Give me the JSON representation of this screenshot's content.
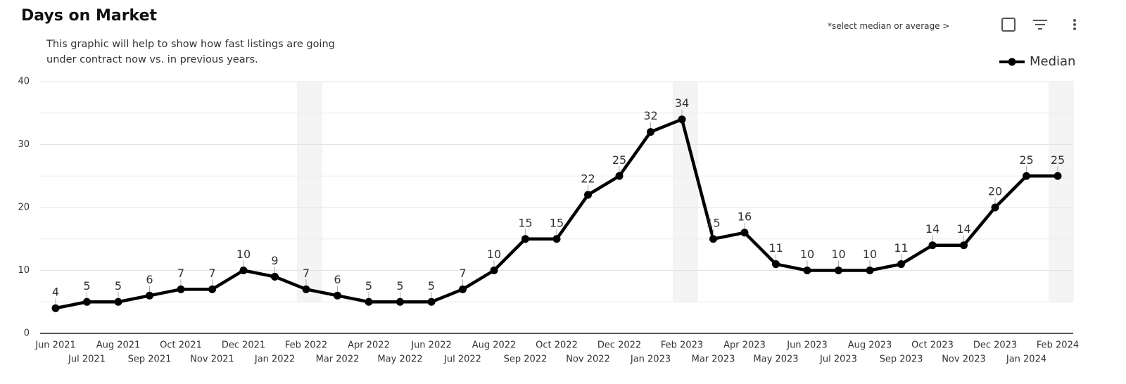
{
  "chart_data": {
    "type": "line",
    "title": "Days on Market",
    "subtitle": "This graphic will help to show how fast listings are going under contract now vs. in previous years.",
    "note": "*select median or average >",
    "categories": [
      "Jun 2021",
      "Jul 2021",
      "Aug 2021",
      "Sep 2021",
      "Oct 2021",
      "Nov 2021",
      "Dec 2021",
      "Jan 2022",
      "Feb 2022",
      "Mar 2022",
      "Apr 2022",
      "May 2022",
      "Jun 2022",
      "Jul 2022",
      "Aug 2022",
      "Sep 2022",
      "Oct 2022",
      "Nov 2022",
      "Dec 2022",
      "Jan 2023",
      "Feb 2023",
      "Mar 2023",
      "Apr 2023",
      "May 2023",
      "Jun 2023",
      "Jul 2023",
      "Aug 2023",
      "Sep 2023",
      "Oct 2023",
      "Nov 2023",
      "Dec 2023",
      "Jan 2024",
      "Feb 2024"
    ],
    "series": [
      {
        "name": "Median",
        "color": "#000000",
        "values": [
          4,
          5,
          5,
          6,
          7,
          7,
          10,
          9,
          7,
          6,
          5,
          5,
          5,
          7,
          10,
          15,
          15,
          22,
          25,
          32,
          34,
          15,
          16,
          11,
          10,
          10,
          10,
          11,
          14,
          14,
          20,
          25,
          25
        ]
      }
    ],
    "ylim": [
      0,
      40
    ],
    "yticks": [
      0,
      10,
      20,
      30,
      40
    ],
    "grid": true,
    "legend": "top-right"
  }
}
